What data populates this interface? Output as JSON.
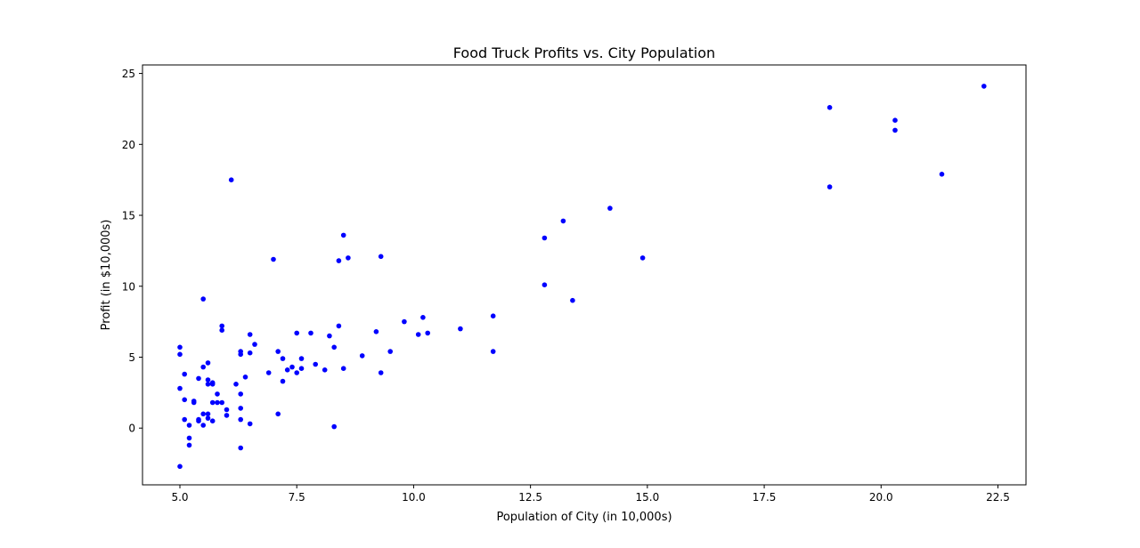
{
  "chart_data": {
    "type": "scatter",
    "title": "Food Truck Profits vs. City Population",
    "xlabel": "Population of City (in 10,000s)",
    "ylabel": "Profit (in $10,000s)",
    "xlim": [
      4.2,
      23.1
    ],
    "ylim": [
      -4.0,
      25.6
    ],
    "x_ticks": [
      5.0,
      7.5,
      10.0,
      12.5,
      15.0,
      17.5,
      20.0,
      22.5
    ],
    "x_tick_labels": [
      "5.0",
      "7.5",
      "10.0",
      "12.5",
      "15.0",
      "17.5",
      "20.0",
      "22.5"
    ],
    "y_ticks": [
      0,
      5,
      10,
      15,
      20,
      25
    ],
    "y_tick_labels": [
      "0",
      "5",
      "10",
      "15",
      "20",
      "25"
    ],
    "grid": false,
    "marker_color": "#0000ff",
    "points": [
      [
        22.2,
        24.1
      ],
      [
        18.9,
        22.6
      ],
      [
        20.3,
        21.7
      ],
      [
        20.3,
        21.0
      ],
      [
        21.3,
        17.9
      ],
      [
        18.9,
        17.0
      ],
      [
        6.1,
        17.5
      ],
      [
        14.2,
        15.5
      ],
      [
        13.2,
        14.6
      ],
      [
        8.5,
        13.6
      ],
      [
        12.8,
        13.4
      ],
      [
        9.3,
        12.1
      ],
      [
        14.9,
        12.0
      ],
      [
        8.6,
        12.0
      ],
      [
        8.4,
        11.8
      ],
      [
        7.0,
        11.9
      ],
      [
        12.8,
        10.1
      ],
      [
        5.5,
        9.1
      ],
      [
        13.4,
        9.0
      ],
      [
        11.7,
        7.9
      ],
      [
        10.2,
        7.8
      ],
      [
        9.8,
        7.5
      ],
      [
        5.9,
        7.2
      ],
      [
        8.4,
        7.2
      ],
      [
        11.0,
        7.0
      ],
      [
        5.9,
        6.9
      ],
      [
        10.1,
        6.6
      ],
      [
        10.3,
        6.7
      ],
      [
        9.2,
        6.8
      ],
      [
        7.8,
        6.7
      ],
      [
        7.5,
        6.7
      ],
      [
        6.5,
        6.6
      ],
      [
        8.2,
        6.5
      ],
      [
        6.6,
        5.9
      ],
      [
        8.3,
        5.7
      ],
      [
        5.0,
        5.7
      ],
      [
        11.7,
        5.4
      ],
      [
        9.5,
        5.4
      ],
      [
        7.1,
        5.4
      ],
      [
        6.3,
        5.4
      ],
      [
        6.5,
        5.3
      ],
      [
        6.3,
        5.2
      ],
      [
        8.9,
        5.1
      ],
      [
        5.0,
        5.2
      ],
      [
        7.6,
        4.9
      ],
      [
        7.2,
        4.9
      ],
      [
        5.6,
        4.6
      ],
      [
        7.9,
        4.5
      ],
      [
        7.4,
        4.3
      ],
      [
        7.6,
        4.2
      ],
      [
        8.5,
        4.2
      ],
      [
        5.5,
        4.3
      ],
      [
        7.3,
        4.1
      ],
      [
        8.1,
        4.1
      ],
      [
        9.3,
        3.9
      ],
      [
        7.5,
        3.9
      ],
      [
        6.9,
        3.9
      ],
      [
        5.1,
        3.8
      ],
      [
        6.4,
        3.6
      ],
      [
        5.4,
        3.5
      ],
      [
        5.6,
        3.4
      ],
      [
        7.2,
        3.3
      ],
      [
        5.7,
        3.2
      ],
      [
        5.7,
        3.1
      ],
      [
        5.6,
        3.1
      ],
      [
        6.2,
        3.1
      ],
      [
        5.0,
        2.8
      ],
      [
        5.8,
        2.4
      ],
      [
        6.3,
        2.4
      ],
      [
        5.1,
        2.0
      ],
      [
        5.3,
        1.9
      ],
      [
        5.3,
        1.8
      ],
      [
        5.7,
        1.8
      ],
      [
        5.8,
        1.8
      ],
      [
        5.9,
        1.8
      ],
      [
        6.3,
        1.4
      ],
      [
        6.0,
        1.3
      ],
      [
        7.1,
        1.0
      ],
      [
        5.5,
        1.0
      ],
      [
        5.6,
        1.0
      ],
      [
        6.0,
        0.9
      ],
      [
        6.3,
        0.6
      ],
      [
        5.6,
        0.7
      ],
      [
        5.1,
        0.6
      ],
      [
        5.4,
        0.5
      ],
      [
        5.4,
        0.6
      ],
      [
        5.7,
        0.5
      ],
      [
        6.5,
        0.3
      ],
      [
        5.2,
        0.2
      ],
      [
        5.5,
        0.2
      ],
      [
        8.3,
        0.1
      ],
      [
        5.2,
        -0.7
      ],
      [
        5.2,
        -1.2
      ],
      [
        6.3,
        -1.4
      ],
      [
        5.0,
        -2.7
      ]
    ]
  }
}
